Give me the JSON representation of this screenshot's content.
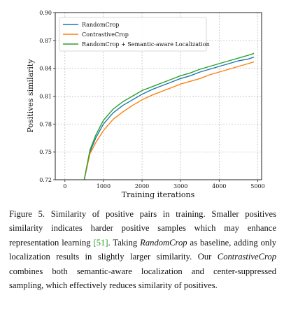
{
  "chart_data": {
    "type": "line",
    "xlabel": "Training iterations",
    "ylabel": "Positives similarity",
    "xlim": [
      -250,
      5100
    ],
    "ylim": [
      0.72,
      0.9
    ],
    "xticks": [
      0,
      1000,
      2000,
      3000,
      4000,
      5000
    ],
    "yticks": [
      0.72,
      0.75,
      0.78,
      0.81,
      0.84,
      0.87,
      0.9
    ],
    "xtick_labels": [
      "0",
      "1000",
      "2000",
      "3000",
      "4000",
      "5000"
    ],
    "ytick_labels": [
      "0.72",
      "0.75",
      "0.78",
      "0.81",
      "0.84",
      "0.87",
      "0.90"
    ],
    "grid": "dashed",
    "legend_position": "top-left",
    "series": [
      {
        "name": "RandomCrop",
        "color": "#1f77b4",
        "x": [
          500,
          650,
          800,
          1000,
          1250,
          1500,
          1750,
          2000,
          2250,
          2500,
          2750,
          3000,
          3250,
          3500,
          3750,
          4000,
          4250,
          4500,
          4750,
          4900
        ],
        "y": [
          0.72,
          0.75,
          0.765,
          0.78,
          0.792,
          0.8,
          0.806,
          0.812,
          0.817,
          0.821,
          0.825,
          0.829,
          0.832,
          0.836,
          0.839,
          0.842,
          0.845,
          0.848,
          0.85,
          0.852
        ]
      },
      {
        "name": "ContrastiveCrop",
        "color": "#ff7f0e",
        "x": [
          500,
          650,
          800,
          1000,
          1250,
          1500,
          1750,
          2000,
          2250,
          2500,
          2750,
          3000,
          3250,
          3500,
          3750,
          4000,
          4250,
          4500,
          4750,
          4900
        ],
        "y": [
          0.72,
          0.748,
          0.76,
          0.773,
          0.785,
          0.793,
          0.8,
          0.806,
          0.811,
          0.815,
          0.819,
          0.823,
          0.826,
          0.829,
          0.833,
          0.836,
          0.839,
          0.842,
          0.845,
          0.847
        ]
      },
      {
        "name": "RandomCrop + Semantic-aware Localization",
        "color": "#2ca02c",
        "x": [
          500,
          650,
          800,
          1000,
          1250,
          1500,
          1750,
          2000,
          2250,
          2500,
          2750,
          3000,
          3250,
          3500,
          3750,
          4000,
          4250,
          4500,
          4750,
          4900
        ],
        "y": [
          0.72,
          0.752,
          0.768,
          0.784,
          0.796,
          0.804,
          0.81,
          0.816,
          0.82,
          0.824,
          0.828,
          0.832,
          0.835,
          0.839,
          0.842,
          0.845,
          0.848,
          0.851,
          0.854,
          0.856
        ]
      }
    ]
  },
  "caption": {
    "p1": "Figure 5.  Similarity of positive pairs in training.  Smaller positives similarity indicates harder positive samples which may enhance representation learning ",
    "cite_open": "[",
    "cite": "51",
    "cite_close": "]",
    "p2": ". Taking ",
    "em1": "RandomCrop",
    "p3": " as baseline, adding only localization results in slightly larger similarity. Our ",
    "em2": "ContrastiveCrop",
    "p4": " combines both semantic-aware localization and center-suppressed sampling, which effectively reduces similarity of positives."
  }
}
